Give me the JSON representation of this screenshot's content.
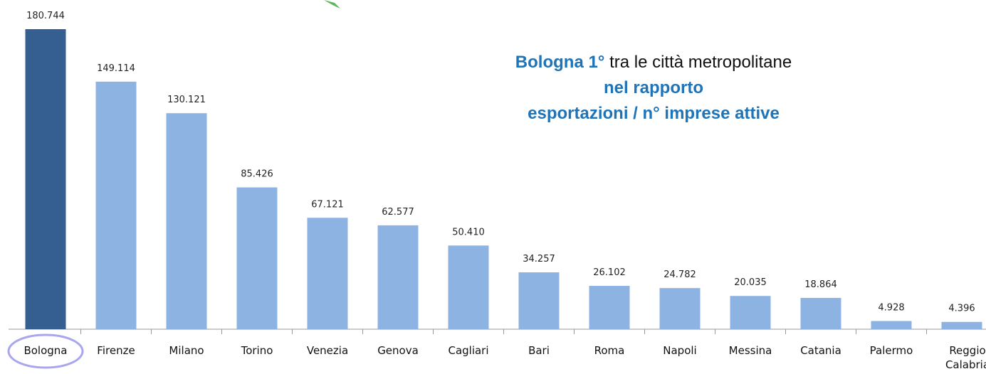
{
  "chart_data": {
    "type": "bar",
    "annotation": {
      "lead": "Bologna 1°",
      "rest": " tra le città metropolitane",
      "line2": "nel rapporto",
      "line3": "esportazioni / n° imprese attive"
    },
    "categories": [
      "Bologna",
      "Firenze",
      "Milano",
      "Torino",
      "Venezia",
      "Genova",
      "Cagliari",
      "Bari",
      "Roma",
      "Napoli",
      "Messina",
      "Catania",
      "Palermo",
      "Reggio Calabria"
    ],
    "values": [
      180744,
      149114,
      130121,
      85426,
      67121,
      62577,
      50410,
      34257,
      26102,
      24782,
      20035,
      18864,
      4928,
      4396
    ],
    "value_labels": [
      "180.744",
      "149.114",
      "130.121",
      "85.426",
      "67.121",
      "62.577",
      "50.410",
      "34.257",
      "26.102",
      "24.782",
      "20.035",
      "18.864",
      "4.928",
      "4.396"
    ],
    "colors": [
      "#355f91",
      "#8db3e2",
      "#8db3e2",
      "#8db3e2",
      "#8db3e2",
      "#8db3e2",
      "#8db3e2",
      "#8db3e2",
      "#8db3e2",
      "#8db3e2",
      "#8db3e2",
      "#8db3e2",
      "#8db3e2",
      "#8db3e2"
    ]
  }
}
